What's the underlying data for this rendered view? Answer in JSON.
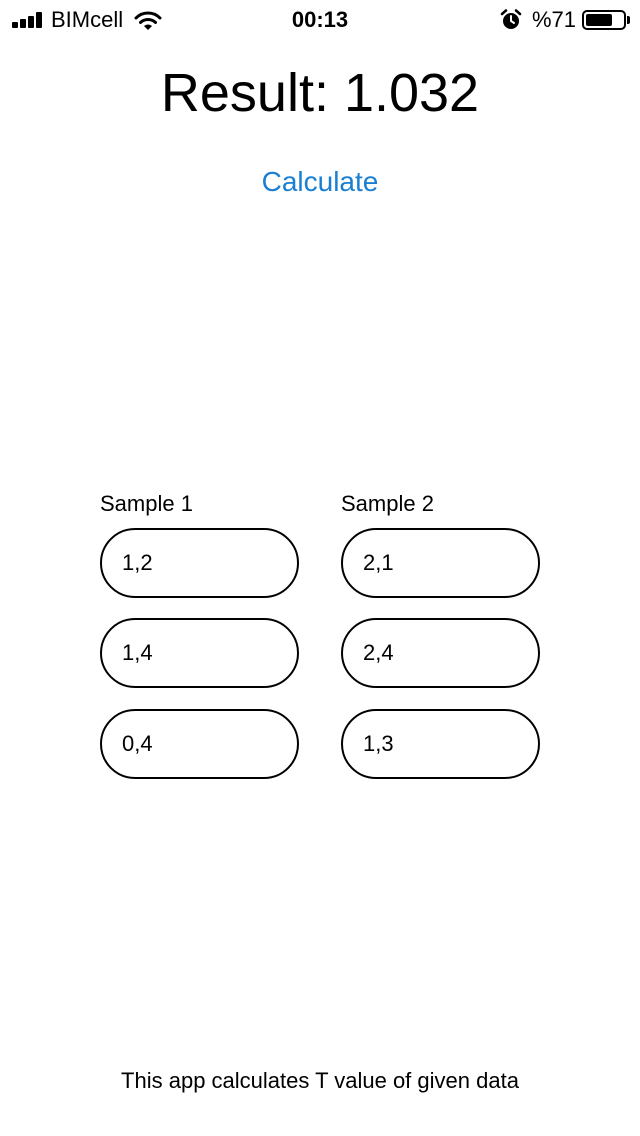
{
  "status_bar": {
    "carrier": "BIMcell",
    "time": "00:13",
    "battery_percent": "%71",
    "battery_level": 0.71,
    "icons": [
      "signal-icon",
      "wifi-icon",
      "alarm-icon",
      "battery-icon"
    ]
  },
  "result": {
    "text": "Result: 1.032"
  },
  "calculate_label": "Calculate",
  "accent_color": "#1a7fd1",
  "sample1": {
    "label": "Sample 1",
    "values": [
      "1,2",
      "1,4",
      "0,4"
    ]
  },
  "sample2": {
    "label": "Sample 2",
    "values": [
      "2,1",
      "2,4",
      "1,3"
    ]
  },
  "footer_text": "This app calculates T value of given data"
}
